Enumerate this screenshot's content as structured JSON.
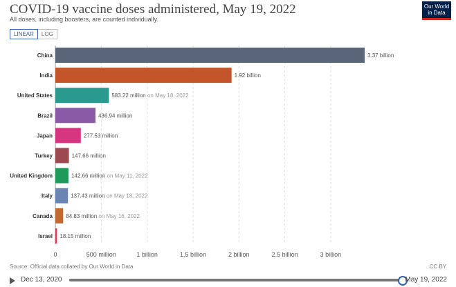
{
  "header": {
    "title": "COVID-19 vaccine doses administered, May 19, 2022",
    "subtitle": "All doses, including boosters, are counted individually.",
    "logo_line1": "Our World",
    "logo_line2": "in Data"
  },
  "controls": {
    "linear_label": "LINEAR",
    "log_label": "LOG",
    "active": "linear"
  },
  "chart_data": {
    "type": "bar",
    "orientation": "horizontal",
    "categories": [
      "China",
      "India",
      "United States",
      "Brazil",
      "Japan",
      "Turkey",
      "United Kingdom",
      "Italy",
      "Canada",
      "Israel"
    ],
    "values": [
      3370000000,
      1920000000,
      583220000,
      436940000,
      277530000,
      147660000,
      142660000,
      137430000,
      84830000,
      18150000
    ],
    "value_labels": [
      "3.37 billion",
      "1.92 billion",
      "583.22 million",
      "436.94 million",
      "277.53 million",
      "147.66 million",
      "142.66 million",
      "137.43 million",
      "84.83 million",
      "18.15 million"
    ],
    "date_notes": [
      "",
      "",
      "on May 18, 2022",
      "",
      "",
      "",
      "on May 11, 2022",
      "on May 18, 2022",
      "on May 16, 2022",
      ""
    ],
    "colors": [
      "#5b6579",
      "#c2562a",
      "#2a9a8f",
      "#8a5aa6",
      "#d63680",
      "#9c4a4f",
      "#1f9a5b",
      "#6a84b4",
      "#c26833",
      "#d93b5a"
    ],
    "xticks": [
      0,
      500000000,
      1000000000,
      1500000000,
      2000000000,
      2500000000,
      3000000000
    ],
    "xtick_labels": [
      "0",
      "500 million",
      "1 billion",
      "1.5 billion",
      "2 billion",
      "2.5 billion",
      "3 billion"
    ],
    "xlim": [
      0,
      3400000000
    ],
    "grid": true
  },
  "footer": {
    "source": "Source: Official data collated by Our World in Data",
    "license": "CC BY"
  },
  "timeline": {
    "start_label": "Dec 13, 2020",
    "end_label": "May 19, 2022",
    "position": 1.0
  }
}
